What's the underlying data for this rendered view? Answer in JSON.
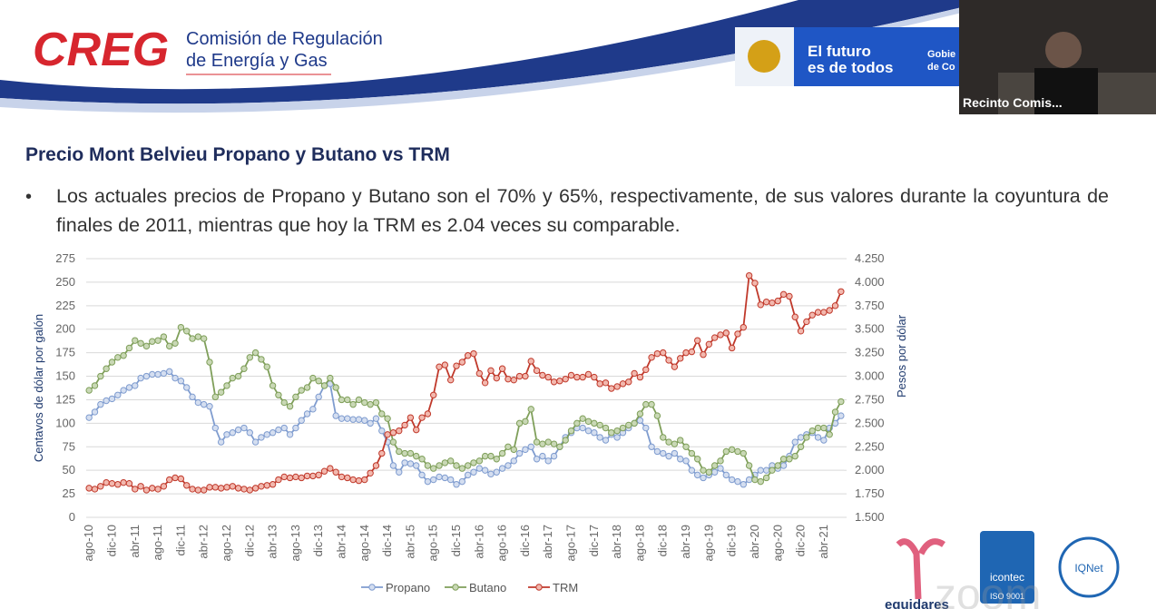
{
  "header": {
    "logo": "CREG",
    "org_line1": "Comisión de Regulación",
    "org_line2": "de Energía y Gas",
    "gov_line1": "El futuro",
    "gov_line2": "es de todos",
    "gov_cut1": "Gobie",
    "gov_cut2": "de Co"
  },
  "video": {
    "label": "Recinto Comis..."
  },
  "slide": {
    "title": "Precio Mont Belvieu Propano y Butano vs TRM",
    "bullet": "Los actuales precios de Propano y Butano son el 70% y 65%, respectivamente, de sus valores durante la coyuntura de finales de 2011, mientras que hoy la TRM es 2.04 veces su comparable."
  },
  "footer": {
    "logo1": "equidares",
    "logo2": "icontec",
    "logo2_sub": "ISO 9001",
    "logo3": "IQNet",
    "watermark": "zoom"
  },
  "chart_data": {
    "type": "line",
    "y_label": "Centavos de dólar por galón",
    "y2_label": "Pesos por dólar",
    "categories": [
      "ago-10",
      null,
      null,
      null,
      "dic-10",
      null,
      null,
      null,
      "abr-11",
      null,
      null,
      null,
      "ago-11",
      null,
      null,
      null,
      "dic-11",
      null,
      null,
      null,
      "abr-12",
      null,
      null,
      null,
      "ago-12",
      null,
      null,
      null,
      "dic-12",
      null,
      null,
      null,
      "abr-13",
      null,
      null,
      null,
      "ago-13",
      null,
      null,
      null,
      "dic-13",
      null,
      null,
      null,
      "abr-14",
      null,
      null,
      null,
      "ago-14",
      null,
      null,
      null,
      "dic-14",
      null,
      null,
      null,
      "abr-15",
      null,
      null,
      null,
      "ago-15",
      null,
      null,
      null,
      "dic-15",
      null,
      null,
      null,
      "abr-16",
      null,
      null,
      null,
      "ago-16",
      null,
      null,
      null,
      "dic-16",
      null,
      null,
      null,
      "abr-17",
      null,
      null,
      null,
      "ago-17",
      null,
      null,
      null,
      "dic-17",
      null,
      null,
      null,
      "abr-18",
      null,
      null,
      null,
      "ago-18",
      null,
      null,
      null,
      "dic-18",
      null,
      null,
      null,
      "abr-19",
      null,
      null,
      null,
      "ago-19",
      null,
      null,
      null,
      "dic-19",
      null,
      null,
      null,
      "abr-20",
      null,
      null,
      null,
      "ago-20",
      null,
      null,
      null,
      "dic-20",
      null,
      null,
      null,
      "abr-21",
      null,
      null,
      null
    ],
    "ylim": [
      0,
      275
    ],
    "yticks": [
      0,
      25,
      50,
      75,
      100,
      125,
      150,
      175,
      200,
      225,
      250,
      275
    ],
    "y2lim": [
      1500,
      4250
    ],
    "y2ticks": [
      {
        "value": 1500,
        "label": "1.500"
      },
      {
        "value": 1750,
        "label": "1.750"
      },
      {
        "value": 2000,
        "label": "2.000"
      },
      {
        "value": 2250,
        "label": "2.250"
      },
      {
        "value": 2500,
        "label": "2.500"
      },
      {
        "value": 2750,
        "label": "2.750"
      },
      {
        "value": 3000,
        "label": "3.000"
      },
      {
        "value": 3250,
        "label": "3.250"
      },
      {
        "value": 3500,
        "label": "3.500"
      },
      {
        "value": 3750,
        "label": "3.750"
      },
      {
        "value": 4000,
        "label": "4.000"
      },
      {
        "value": 4250,
        "label": "4.250"
      }
    ],
    "grid": true,
    "series": [
      {
        "name": "Propano",
        "color": "#7f9ccf",
        "values": [
          106,
          112,
          120,
          124,
          126,
          130,
          135,
          138,
          140,
          148,
          150,
          152,
          152,
          153,
          155,
          148,
          145,
          138,
          128,
          122,
          120,
          118,
          95,
          80,
          88,
          90,
          93,
          95,
          90,
          80,
          85,
          88,
          90,
          93,
          95,
          88,
          95,
          103,
          110,
          115,
          128,
          140,
          142,
          108,
          105,
          105,
          104,
          104,
          103,
          100,
          105,
          92,
          80,
          55,
          48,
          58,
          57,
          55,
          45,
          38,
          40,
          43,
          42,
          40,
          35,
          38,
          45,
          48,
          52,
          50,
          46,
          48,
          52,
          55,
          60,
          68,
          72,
          75,
          62,
          65,
          60,
          65,
          75,
          85,
          90,
          95,
          95,
          92,
          90,
          85,
          82,
          88,
          85,
          90,
          95,
          100,
          103,
          95,
          75,
          70,
          68,
          65,
          68,
          62,
          60,
          50,
          45,
          42,
          45,
          48,
          52,
          45,
          40,
          38,
          35,
          40,
          45,
          50,
          50,
          55,
          52,
          55,
          65,
          80,
          85,
          88,
          90,
          85,
          82,
          95,
          100,
          108
        ]
      },
      {
        "name": "Butano",
        "color": "#7f9f5a",
        "values": [
          135,
          140,
          150,
          158,
          165,
          170,
          172,
          180,
          188,
          185,
          182,
          187,
          188,
          192,
          182,
          185,
          202,
          198,
          190,
          192,
          190,
          165,
          128,
          133,
          140,
          148,
          150,
          158,
          170,
          175,
          168,
          160,
          140,
          130,
          122,
          118,
          128,
          135,
          138,
          148,
          145,
          140,
          148,
          138,
          125,
          125,
          120,
          125,
          122,
          120,
          122,
          110,
          105,
          80,
          70,
          68,
          68,
          65,
          62,
          55,
          52,
          55,
          58,
          60,
          55,
          52,
          55,
          58,
          60,
          65,
          65,
          62,
          68,
          75,
          72,
          100,
          102,
          115,
          80,
          78,
          80,
          78,
          75,
          82,
          92,
          100,
          105,
          102,
          100,
          98,
          95,
          90,
          92,
          95,
          98,
          100,
          110,
          120,
          120,
          108,
          85,
          80,
          78,
          82,
          75,
          68,
          62,
          50,
          48,
          55,
          60,
          70,
          72,
          70,
          68,
          55,
          40,
          38,
          42,
          50,
          55,
          62,
          62,
          65,
          75,
          85,
          92,
          95,
          95,
          88,
          112,
          123
        ]
      },
      {
        "name": "TRM",
        "color": "#c0392b",
        "axis": "y2",
        "values": [
          1810,
          1800,
          1830,
          1870,
          1860,
          1850,
          1870,
          1860,
          1800,
          1830,
          1790,
          1810,
          1800,
          1830,
          1900,
          1920,
          1910,
          1840,
          1800,
          1790,
          1790,
          1820,
          1820,
          1810,
          1820,
          1830,
          1810,
          1800,
          1790,
          1810,
          1830,
          1840,
          1850,
          1900,
          1930,
          1920,
          1930,
          1920,
          1940,
          1940,
          1950,
          1990,
          2020,
          1980,
          1930,
          1920,
          1900,
          1890,
          1900,
          1970,
          2050,
          2180,
          2380,
          2400,
          2420,
          2480,
          2560,
          2430,
          2560,
          2600,
          2800,
          3100,
          3120,
          2960,
          3110,
          3150,
          3220,
          3240,
          3030,
          2930,
          3060,
          2980,
          3080,
          2970,
          2960,
          3000,
          3000,
          3160,
          3060,
          3010,
          2990,
          2940,
          2950,
          2970,
          3010,
          2990,
          2990,
          3020,
          2990,
          2920,
          2930,
          2870,
          2890,
          2920,
          2940,
          3030,
          2990,
          3070,
          3200,
          3240,
          3250,
          3170,
          3100,
          3190,
          3250,
          3260,
          3380,
          3230,
          3340,
          3410,
          3440,
          3460,
          3300,
          3450,
          3520,
          4070,
          3990,
          3760,
          3790,
          3780,
          3800,
          3870,
          3850,
          3630,
          3480,
          3580,
          3650,
          3680,
          3680,
          3700,
          3750,
          3900
        ]
      }
    ]
  }
}
